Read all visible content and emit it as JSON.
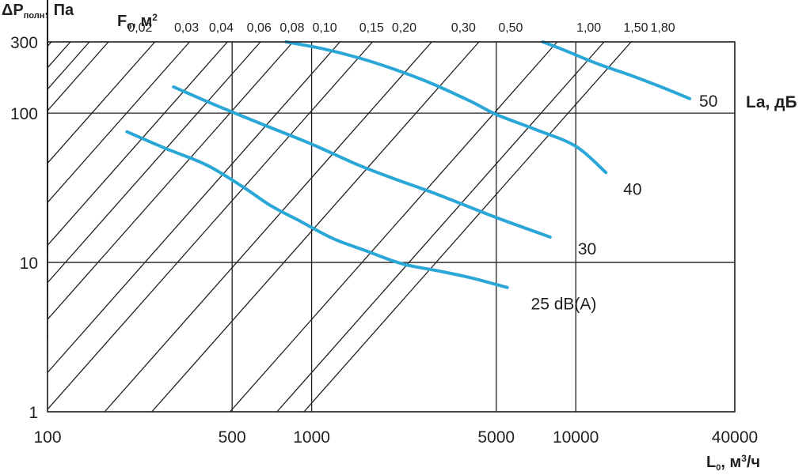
{
  "colors": {
    "curve": "#2aa7d6",
    "line": "#231f20",
    "background": "#ffffff"
  },
  "y_title": {
    "main": "ΔP",
    "sub": "полн",
    "rest": ", Па"
  },
  "f_title": {
    "main": "F",
    "sub": "0",
    "rest": ", м",
    "sup": "2"
  },
  "x_title": {
    "main": "L",
    "sub": "0",
    "unit": ", м",
    "sup": "3",
    "rest": "/ч"
  },
  "la_title": "La, дБ",
  "chart_data": {
    "type": "line",
    "x_scale": "log",
    "y_scale": "log",
    "xlim": [
      100,
      40000
    ],
    "ylim": [
      1,
      300
    ],
    "xticks": [
      100,
      500,
      1000,
      5000,
      10000,
      40000
    ],
    "xtick_labels": [
      "100",
      "500",
      "1000",
      "5000",
      "10000",
      "40000"
    ],
    "yticks": [
      1,
      10,
      100,
      300
    ],
    "ytick_labels": [
      "1",
      "10",
      "100",
      "300"
    ],
    "xlabel": "L0, м3/ч",
    "ylabel": "ΔPполн, Па",
    "grid": true,
    "free_area_lines": {
      "label": "F0, м2",
      "values": [
        0.02,
        0.03,
        0.04,
        0.06,
        0.08,
        0.1,
        0.15,
        0.2,
        0.3,
        0.5,
        1.0,
        1.5,
        1.8
      ],
      "labels": [
        "0,02",
        "0,03",
        "0,04",
        "0,06",
        "0,08",
        "0,10",
        "0,15",
        "0,20",
        "0,30",
        "0,50",
        "1,00",
        "1,50",
        "1,80"
      ],
      "top_crossing_flow": [
        170,
        255,
        345,
        480,
        640,
        850,
        1280,
        1700,
        2850,
        4300,
        8500,
        12800,
        16200
      ],
      "slope": 2
    },
    "series": [
      {
        "name": "25 dB(A)",
        "label": "25 dB(A)",
        "x": [
          200,
          280,
          400,
          550,
          700,
          900,
          1200,
          1600,
          2200,
          3000,
          4000,
          5500
        ],
        "y": [
          75,
          58,
          45,
          32,
          24,
          19,
          14.5,
          12,
          9.8,
          8.8,
          7.9,
          6.8
        ]
      },
      {
        "name": "30",
        "label": "30",
        "x": [
          300,
          400,
          550,
          700,
          1000,
          1500,
          2000,
          3000,
          5000,
          8000
        ],
        "y": [
          150,
          120,
          95,
          80,
          62,
          45,
          37,
          28.5,
          20,
          14.8
        ]
      },
      {
        "name": "40",
        "label": "40",
        "x": [
          800,
          1100,
          1500,
          2000,
          2800,
          4000,
          5000,
          7000,
          10000,
          13000
        ],
        "y": [
          300,
          270,
          235,
          200,
          160,
          120,
          98,
          78,
          60,
          40
        ]
      },
      {
        "name": "50",
        "label": "50",
        "x": [
          7500,
          9000,
          12000,
          16000,
          21000,
          27000
        ],
        "y": [
          300,
          265,
          215,
          180,
          150,
          125
        ]
      }
    ]
  }
}
